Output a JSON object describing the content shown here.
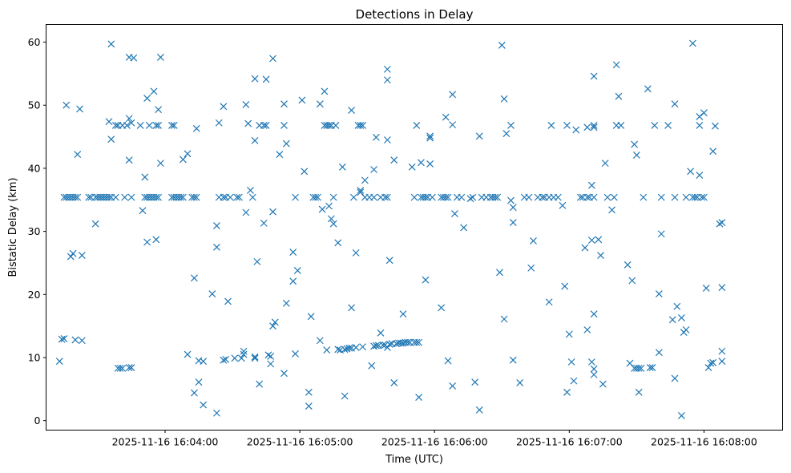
{
  "chart_data": {
    "type": "scatter",
    "title": "Detections in Delay",
    "xlabel": "Time (UTC)",
    "ylabel": "Bistatic Delay (km)",
    "marker": "x",
    "color": "#1f77b4",
    "grid": false,
    "legend": "none",
    "x_unit": "UTC time (HH:MM:SS on 2025-11-16)",
    "xlim": [
      "16:03:07",
      "16:08:35"
    ],
    "ylim": [
      -1.5,
      62.8
    ],
    "x_ticks": [
      "2025-11-16 16:04:00",
      "2025-11-16 16:05:00",
      "2025-11-16 16:06:00",
      "2025-11-16 16:07:00",
      "2025-11-16 16:08:00"
    ],
    "y_ticks": [
      "0",
      "10",
      "20",
      "30",
      "40",
      "50",
      "60"
    ],
    "points": [
      [
        "16:03:13",
        9.4
      ],
      [
        "16:03:14",
        12.9
      ],
      [
        "16:03:15",
        13.0
      ],
      [
        "16:03:16",
        50.0
      ],
      [
        "16:03:15",
        35.4
      ],
      [
        "16:03:16",
        35.4
      ],
      [
        "16:03:17",
        35.4
      ],
      [
        "16:03:18",
        35.4
      ],
      [
        "16:03:19",
        35.4
      ],
      [
        "16:03:20",
        35.4
      ],
      [
        "16:03:21",
        35.4
      ],
      [
        "16:03:18",
        26.0
      ],
      [
        "16:03:19",
        26.5
      ],
      [
        "16:03:20",
        12.8
      ],
      [
        "16:03:21",
        42.2
      ],
      [
        "16:03:22",
        49.4
      ],
      [
        "16:03:23",
        26.2
      ],
      [
        "16:03:23",
        12.7
      ],
      [
        "16:03:26",
        35.4
      ],
      [
        "16:03:27",
        35.4
      ],
      [
        "16:03:29",
        35.4
      ],
      [
        "16:03:30",
        35.4
      ],
      [
        "16:03:31",
        35.4
      ],
      [
        "16:03:32",
        35.4
      ],
      [
        "16:03:33",
        35.4
      ],
      [
        "16:03:34",
        35.4
      ],
      [
        "16:03:35",
        35.4
      ],
      [
        "16:03:36",
        35.4
      ],
      [
        "16:03:38",
        35.4
      ],
      [
        "16:03:29",
        31.2
      ],
      [
        "16:03:35",
        47.4
      ],
      [
        "16:03:36",
        44.6
      ],
      [
        "16:03:36",
        59.7
      ],
      [
        "16:03:38",
        46.8
      ],
      [
        "16:03:39",
        46.8
      ],
      [
        "16:03:41",
        46.8
      ],
      [
        "16:03:43",
        46.8
      ],
      [
        "16:03:39",
        8.3
      ],
      [
        "16:03:40",
        8.3
      ],
      [
        "16:03:41",
        8.3
      ],
      [
        "16:03:44",
        8.4
      ],
      [
        "16:03:45",
        8.4
      ],
      [
        "16:03:42",
        35.4
      ],
      [
        "16:03:45",
        35.4
      ],
      [
        "16:03:44",
        57.6
      ],
      [
        "16:03:44",
        47.9
      ],
      [
        "16:03:45",
        47.2
      ],
      [
        "16:03:44",
        41.3
      ],
      [
        "16:03:46",
        57.5
      ],
      [
        "16:03:49",
        46.8
      ],
      [
        "16:03:50",
        33.3
      ],
      [
        "16:03:51",
        38.6
      ],
      [
        "16:03:52",
        51.1
      ],
      [
        "16:03:52",
        28.3
      ],
      [
        "16:03:53",
        46.8
      ],
      [
        "16:03:51",
        35.4
      ],
      [
        "16:03:52",
        35.4
      ],
      [
        "16:03:53",
        35.4
      ],
      [
        "16:03:54",
        35.4
      ],
      [
        "16:03:55",
        35.4
      ],
      [
        "16:03:56",
        35.4
      ],
      [
        "16:03:57",
        35.4
      ],
      [
        "16:03:55",
        52.2
      ],
      [
        "16:03:56",
        46.8
      ],
      [
        "16:03:56",
        28.7
      ],
      [
        "16:03:57",
        49.3
      ],
      [
        "16:03:58",
        40.8
      ],
      [
        "16:03:58",
        57.6
      ],
      [
        "16:03:57",
        46.8
      ],
      [
        "16:04:03",
        46.8
      ],
      [
        "16:04:04",
        46.8
      ],
      [
        "16:04:03",
        35.4
      ],
      [
        "16:04:04",
        35.4
      ],
      [
        "16:04:05",
        35.4
      ],
      [
        "16:04:06",
        35.4
      ],
      [
        "16:04:07",
        35.4
      ],
      [
        "16:04:08",
        35.4
      ],
      [
        "16:04:08",
        41.4
      ],
      [
        "16:04:10",
        42.3
      ],
      [
        "16:04:10",
        10.5
      ],
      [
        "16:04:12",
        35.4
      ],
      [
        "16:04:13",
        35.4
      ],
      [
        "16:04:14",
        35.4
      ],
      [
        "16:04:13",
        4.4
      ],
      [
        "16:04:13",
        22.6
      ],
      [
        "16:04:14",
        46.3
      ],
      [
        "16:04:15",
        6.1
      ],
      [
        "16:04:15",
        9.5
      ],
      [
        "16:04:17",
        9.4
      ],
      [
        "16:04:17",
        2.5
      ],
      [
        "16:04:21",
        20.1
      ],
      [
        "16:04:23",
        30.9
      ],
      [
        "16:04:23",
        27.5
      ],
      [
        "16:04:24",
        47.2
      ],
      [
        "16:04:23",
        1.2
      ],
      [
        "16:04:24",
        35.4
      ],
      [
        "16:04:26",
        35.4
      ],
      [
        "16:04:27",
        35.4
      ],
      [
        "16:04:29",
        35.4
      ],
      [
        "16:04:32",
        35.4
      ],
      [
        "16:04:33",
        35.4
      ],
      [
        "16:04:26",
        49.8
      ],
      [
        "16:04:28",
        18.9
      ],
      [
        "16:04:26",
        9.6
      ],
      [
        "16:04:27",
        9.7
      ],
      [
        "16:04:31",
        9.9
      ],
      [
        "16:04:34",
        9.9
      ],
      [
        "16:04:35",
        10.5
      ],
      [
        "16:04:35",
        11.0
      ],
      [
        "16:04:36",
        33.0
      ],
      [
        "16:04:37",
        47.1
      ],
      [
        "16:04:36",
        50.1
      ],
      [
        "16:04:38",
        36.5
      ],
      [
        "16:04:39",
        35.4
      ],
      [
        "16:04:40",
        54.2
      ],
      [
        "16:04:40",
        44.4
      ],
      [
        "16:04:41",
        25.2
      ],
      [
        "16:04:40",
        10.1
      ],
      [
        "16:04:40",
        9.9
      ],
      [
        "16:04:42",
        46.8
      ],
      [
        "16:04:44",
        46.8
      ],
      [
        "16:04:45",
        46.8
      ],
      [
        "16:04:42",
        5.8
      ],
      [
        "16:04:44",
        31.3
      ],
      [
        "16:04:45",
        54.1
      ],
      [
        "16:04:46",
        10.4
      ],
      [
        "16:04:47",
        10.2
      ],
      [
        "16:04:47",
        9.0
      ],
      [
        "16:04:48",
        15.0
      ],
      [
        "16:04:48",
        33.1
      ],
      [
        "16:04:48",
        57.4
      ],
      [
        "16:04:49",
        15.6
      ],
      [
        "16:04:51",
        42.2
      ],
      [
        "16:04:53",
        46.8
      ],
      [
        "16:04:53",
        50.2
      ],
      [
        "16:04:53",
        7.5
      ],
      [
        "16:04:54",
        43.9
      ],
      [
        "16:04:54",
        18.6
      ],
      [
        "16:04:57",
        26.7
      ],
      [
        "16:04:57",
        22.1
      ],
      [
        "16:04:58",
        10.6
      ],
      [
        "16:04:58",
        35.4
      ],
      [
        "16:04:59",
        23.8
      ],
      [
        "16:05:01",
        50.8
      ],
      [
        "16:05:02",
        39.5
      ],
      [
        "16:05:04",
        4.5
      ],
      [
        "16:05:04",
        2.3
      ],
      [
        "16:05:05",
        16.5
      ],
      [
        "16:05:06",
        35.4
      ],
      [
        "16:05:07",
        35.4
      ],
      [
        "16:05:08",
        35.4
      ],
      [
        "16:05:09",
        50.2
      ],
      [
        "16:05:09",
        12.7
      ],
      [
        "16:05:10",
        33.5
      ],
      [
        "16:05:11",
        52.2
      ],
      [
        "16:05:11",
        46.8
      ],
      [
        "16:05:12",
        46.8
      ],
      [
        "16:05:13",
        46.8
      ],
      [
        "16:05:14",
        46.8
      ],
      [
        "16:05:12",
        11.2
      ],
      [
        "16:05:13",
        34.0
      ],
      [
        "16:05:14",
        32.0
      ],
      [
        "16:05:15",
        31.2
      ],
      [
        "16:05:15",
        35.4
      ],
      [
        "16:05:16",
        46.8
      ],
      [
        "16:05:17",
        28.2
      ],
      [
        "16:05:17",
        11.3
      ],
      [
        "16:05:18",
        11.2
      ],
      [
        "16:05:19",
        40.2
      ],
      [
        "16:05:20",
        11.3
      ],
      [
        "16:05:21",
        11.4
      ],
      [
        "16:05:20",
        3.9
      ],
      [
        "16:05:22",
        11.5
      ],
      [
        "16:05:23",
        11.5
      ],
      [
        "16:05:23",
        49.2
      ],
      [
        "16:05:23",
        17.9
      ],
      [
        "16:05:24",
        35.4
      ],
      [
        "16:05:25",
        26.6
      ],
      [
        "16:05:25",
        11.6
      ],
      [
        "16:05:26",
        46.8
      ],
      [
        "16:05:27",
        36.5
      ],
      [
        "16:05:27",
        36.2
      ],
      [
        "16:05:27",
        46.8
      ],
      [
        "16:05:28",
        46.8
      ],
      [
        "16:05:28",
        11.7
      ],
      [
        "16:05:29",
        38.1
      ],
      [
        "16:05:29",
        35.4
      ],
      [
        "16:05:31",
        35.4
      ],
      [
        "16:05:33",
        35.4
      ],
      [
        "16:05:32",
        8.7
      ],
      [
        "16:05:33",
        39.8
      ],
      [
        "16:05:34",
        44.9
      ],
      [
        "16:05:33",
        11.8
      ],
      [
        "16:05:34",
        11.9
      ],
      [
        "16:05:35",
        11.9
      ],
      [
        "16:05:36",
        13.9
      ],
      [
        "16:05:36",
        35.4
      ],
      [
        "16:05:37",
        12.0
      ],
      [
        "16:05:38",
        12.0
      ],
      [
        "16:05:38",
        35.4
      ],
      [
        "16:05:39",
        35.4
      ],
      [
        "16:05:39",
        44.5
      ],
      [
        "16:05:39",
        54.0
      ],
      [
        "16:05:39",
        55.7
      ],
      [
        "16:05:39",
        11.6
      ],
      [
        "16:05:40",
        25.4
      ],
      [
        "16:05:40",
        12.1
      ],
      [
        "16:05:41",
        12.2
      ],
      [
        "16:05:42",
        41.3
      ],
      [
        "16:05:42",
        6.0
      ],
      [
        "16:05:43",
        12.2
      ],
      [
        "16:05:44",
        12.3
      ],
      [
        "16:05:45",
        12.3
      ],
      [
        "16:05:46",
        16.9
      ],
      [
        "16:05:46",
        12.3
      ],
      [
        "16:05:47",
        12.4
      ],
      [
        "16:05:48",
        12.4
      ],
      [
        "16:05:49",
        12.4
      ],
      [
        "16:05:50",
        40.2
      ],
      [
        "16:05:51",
        12.4
      ],
      [
        "16:05:51",
        35.4
      ],
      [
        "16:05:52",
        46.8
      ],
      [
        "16:05:52",
        12.4
      ],
      [
        "16:05:53",
        12.4
      ],
      [
        "16:05:53",
        3.7
      ],
      [
        "16:05:54",
        35.4
      ],
      [
        "16:05:55",
        35.4
      ],
      [
        "16:05:56",
        35.4
      ],
      [
        "16:05:57",
        35.4
      ],
      [
        "16:05:54",
        40.9
      ],
      [
        "16:05:56",
        22.3
      ],
      [
        "16:05:58",
        40.7
      ],
      [
        "16:05:58",
        45.1
      ],
      [
        "16:05:58",
        44.8
      ],
      [
        "16:05:59",
        35.4
      ],
      [
        "16:06:03",
        35.4
      ],
      [
        "16:06:04",
        35.4
      ],
      [
        "16:06:05",
        35.4
      ],
      [
        "16:06:06",
        35.4
      ],
      [
        "16:06:03",
        17.9
      ],
      [
        "16:06:05",
        48.1
      ],
      [
        "16:06:06",
        9.5
      ],
      [
        "16:06:08",
        46.9
      ],
      [
        "16:06:08",
        51.7
      ],
      [
        "16:06:08",
        5.5
      ],
      [
        "16:06:09",
        32.8
      ],
      [
        "16:06:10",
        35.4
      ],
      [
        "16:06:12",
        35.4
      ],
      [
        "16:06:13",
        30.6
      ],
      [
        "16:06:16",
        35.2
      ],
      [
        "16:06:17",
        35.4
      ],
      [
        "16:06:18",
        6.1
      ],
      [
        "16:06:20",
        45.1
      ],
      [
        "16:06:20",
        1.7
      ],
      [
        "16:06:21",
        35.4
      ],
      [
        "16:06:23",
        35.4
      ],
      [
        "16:06:25",
        35.4
      ],
      [
        "16:06:26",
        35.4
      ],
      [
        "16:06:27",
        35.4
      ],
      [
        "16:06:28",
        35.4
      ],
      [
        "16:06:29",
        23.5
      ],
      [
        "16:06:30",
        59.5
      ],
      [
        "16:06:31",
        51.0
      ],
      [
        "16:06:31",
        16.1
      ],
      [
        "16:06:32",
        45.5
      ],
      [
        "16:06:34",
        46.8
      ],
      [
        "16:06:34",
        34.9
      ],
      [
        "16:06:35",
        33.8
      ],
      [
        "16:06:35",
        31.4
      ],
      [
        "16:06:35",
        9.6
      ],
      [
        "16:06:38",
        6.0
      ],
      [
        "16:06:40",
        35.4
      ],
      [
        "16:06:42",
        35.4
      ],
      [
        "16:06:43",
        24.2
      ],
      [
        "16:06:44",
        28.5
      ],
      [
        "16:06:46",
        35.4
      ],
      [
        "16:06:48",
        35.4
      ],
      [
        "16:06:49",
        35.4
      ],
      [
        "16:06:51",
        18.8
      ],
      [
        "16:06:51",
        35.4
      ],
      [
        "16:06:52",
        46.8
      ],
      [
        "16:06:53",
        35.4
      ],
      [
        "16:06:55",
        35.4
      ],
      [
        "16:06:57",
        34.1
      ],
      [
        "16:06:58",
        21.3
      ],
      [
        "16:06:59",
        46.8
      ],
      [
        "16:06:59",
        4.5
      ],
      [
        "16:07:00",
        13.7
      ],
      [
        "16:07:01",
        9.3
      ],
      [
        "16:07:02",
        6.3
      ],
      [
        "16:07:03",
        46.1
      ],
      [
        "16:07:05",
        35.4
      ],
      [
        "16:07:06",
        35.4
      ],
      [
        "16:07:07",
        27.4
      ],
      [
        "16:07:08",
        35.4
      ],
      [
        "16:07:08",
        46.5
      ],
      [
        "16:07:08",
        14.4
      ],
      [
        "16:07:09",
        35.4
      ],
      [
        "16:07:10",
        28.6
      ],
      [
        "16:07:10",
        37.3
      ],
      [
        "16:07:10",
        9.3
      ],
      [
        "16:07:11",
        35.4
      ],
      [
        "16:07:11",
        46.8
      ],
      [
        "16:07:11",
        46.5
      ],
      [
        "16:07:11",
        54.6
      ],
      [
        "16:07:11",
        16.9
      ],
      [
        "16:07:11",
        8.2
      ],
      [
        "16:07:11",
        7.3
      ],
      [
        "16:07:13",
        28.7
      ],
      [
        "16:07:14",
        26.2
      ],
      [
        "16:07:15",
        5.8
      ],
      [
        "16:07:16",
        40.8
      ],
      [
        "16:07:17",
        35.4
      ],
      [
        "16:07:19",
        33.4
      ],
      [
        "16:07:20",
        35.4
      ],
      [
        "16:07:21",
        46.8
      ],
      [
        "16:07:21",
        56.4
      ],
      [
        "16:07:22",
        51.4
      ],
      [
        "16:07:23",
        46.8
      ],
      [
        "16:07:26",
        24.7
      ],
      [
        "16:07:27",
        9.1
      ],
      [
        "16:07:28",
        22.2
      ],
      [
        "16:07:29",
        8.3
      ],
      [
        "16:07:29",
        43.8
      ],
      [
        "16:07:30",
        8.3
      ],
      [
        "16:07:30",
        42.1
      ],
      [
        "16:07:31",
        8.3
      ],
      [
        "16:07:31",
        4.5
      ],
      [
        "16:07:32",
        8.3
      ],
      [
        "16:07:33",
        35.4
      ],
      [
        "16:07:35",
        52.6
      ],
      [
        "16:07:36",
        8.4
      ],
      [
        "16:07:37",
        8.4
      ],
      [
        "16:07:38",
        46.8
      ],
      [
        "16:07:40",
        20.1
      ],
      [
        "16:07:40",
        10.8
      ],
      [
        "16:07:41",
        35.4
      ],
      [
        "16:07:41",
        29.6
      ],
      [
        "16:07:44",
        46.8
      ],
      [
        "16:07:46",
        16.0
      ],
      [
        "16:07:47",
        6.7
      ],
      [
        "16:07:47",
        35.4
      ],
      [
        "16:07:47",
        50.2
      ],
      [
        "16:07:48",
        18.1
      ],
      [
        "16:07:50",
        16.3
      ],
      [
        "16:07:50",
        0.8
      ],
      [
        "16:07:51",
        14.0
      ],
      [
        "16:07:52",
        35.4
      ],
      [
        "16:07:52",
        14.4
      ],
      [
        "16:07:54",
        39.5
      ],
      [
        "16:07:55",
        59.8
      ],
      [
        "16:07:55",
        35.4
      ],
      [
        "16:07:56",
        35.4
      ],
      [
        "16:07:57",
        35.4
      ],
      [
        "16:07:58",
        46.8
      ],
      [
        "16:07:58",
        48.2
      ],
      [
        "16:07:58",
        38.9
      ],
      [
        "16:07:59",
        35.4
      ],
      [
        "16:08:00",
        48.8
      ],
      [
        "16:08:00",
        35.4
      ],
      [
        "16:08:01",
        21.0
      ],
      [
        "16:08:02",
        8.4
      ],
      [
        "16:08:03",
        9.1
      ],
      [
        "16:08:04",
        9.2
      ],
      [
        "16:08:04",
        42.7
      ],
      [
        "16:08:05",
        46.7
      ],
      [
        "16:08:07",
        31.2
      ],
      [
        "16:08:08",
        31.4
      ],
      [
        "16:08:08",
        11.0
      ],
      [
        "16:08:08",
        21.1
      ],
      [
        "16:08:08",
        9.4
      ]
    ]
  }
}
